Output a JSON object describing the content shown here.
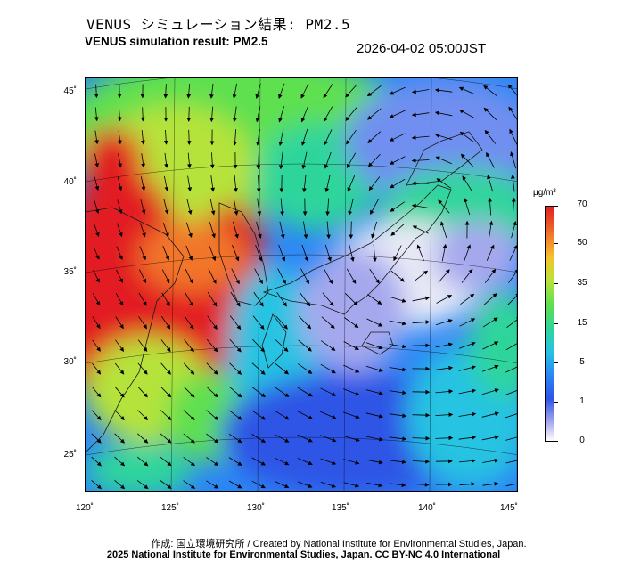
{
  "header": {
    "title_jp": "VENUS シミュレーション結果: PM2.5",
    "title_en": "VENUS simulation result: PM2.5",
    "timestamp": "2026-04-02 05:00JST"
  },
  "map": {
    "latitude_labels": [
      "45˚",
      "40˚",
      "35˚",
      "30˚",
      "25˚"
    ],
    "longitude_labels": [
      "120˚",
      "125˚",
      "130˚",
      "135˚",
      "140˚",
      "145˚"
    ],
    "field": "PM2.5 concentration with wind vectors",
    "colors": {
      "very_high": "#e21f24",
      "high": "#f2762a",
      "moderate": "#5ee04f",
      "low": "#27c3e2",
      "very_low": "#2f54e6",
      "near_zero": "#e8eaf6"
    }
  },
  "colorbar": {
    "unit": "μg/m³",
    "ticks": [
      "70",
      "50",
      "35",
      "15",
      "5",
      "1",
      "0"
    ]
  },
  "footer": {
    "credit_jp": "作成: 国立環境研究所 / Created by National Institute for Environmental Studies, Japan.",
    "credit_en": "2025 National Institute for Environmental Studies, Japan. CC BY-NC 4.0 International"
  }
}
